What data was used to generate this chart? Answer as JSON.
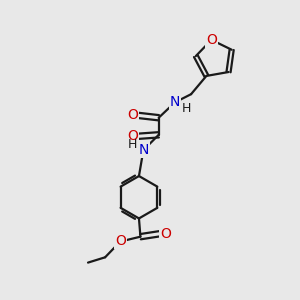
{
  "background_color": "#e8e8e8",
  "bond_color": "#1a1a1a",
  "oxygen_color": "#cc0000",
  "nitrogen_color": "#0000cc",
  "line_width": 1.6,
  "font_size": 10,
  "figsize": [
    3.0,
    3.0
  ],
  "dpi": 100,
  "xlim": [
    0,
    10
  ],
  "ylim": [
    0,
    10
  ]
}
